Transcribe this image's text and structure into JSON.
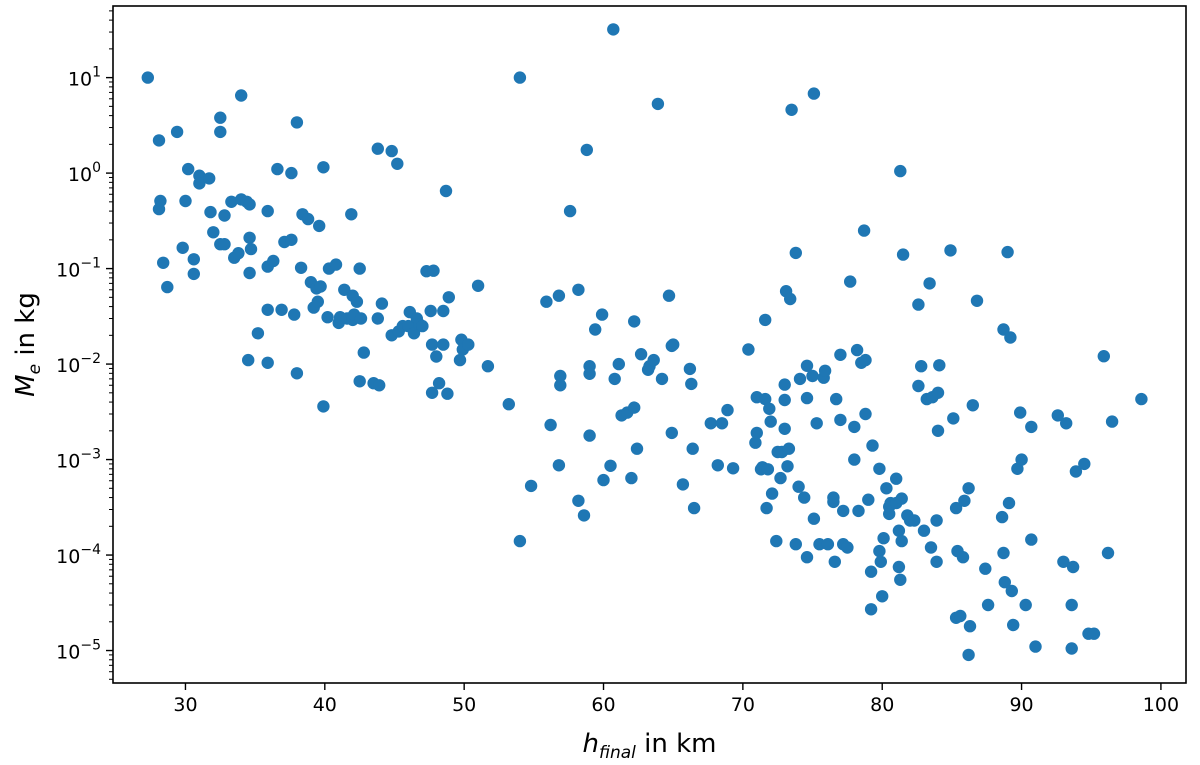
{
  "chart_data": {
    "type": "scatter",
    "xlabel": {
      "base": "h",
      "subscript": "final",
      "suffix": " in km"
    },
    "ylabel": {
      "base": "M",
      "subscript": "e",
      "suffix": " in kg"
    },
    "xlim": [
      24.8,
      101.8
    ],
    "ylim_log10": [
      -5.34,
      1.75
    ],
    "yscale": "log",
    "xticks": [
      30,
      40,
      50,
      60,
      70,
      80,
      90,
      100
    ],
    "yticks": [
      {
        "exp": -5,
        "label": "10",
        "sup": "−5"
      },
      {
        "exp": -4,
        "label": "10",
        "sup": "−4"
      },
      {
        "exp": -3,
        "label": "10",
        "sup": "−3"
      },
      {
        "exp": -2,
        "label": "10",
        "sup": "−2"
      },
      {
        "exp": -1,
        "label": "10",
        "sup": "−1"
      },
      {
        "exp": 0,
        "label": "10",
        "sup": "0"
      },
      {
        "exp": 1,
        "label": "10",
        "sup": "1"
      }
    ],
    "marker_color": "#1f77b4",
    "grid": false,
    "points": [
      [
        27.3,
        10.0
      ],
      [
        28.1,
        2.2
      ],
      [
        28.1,
        0.42
      ],
      [
        28.2,
        0.51
      ],
      [
        28.4,
        0.115
      ],
      [
        28.7,
        0.064
      ],
      [
        29.4,
        2.7
      ],
      [
        29.8,
        0.165
      ],
      [
        30.0,
        0.51
      ],
      [
        30.2,
        1.1
      ],
      [
        30.6,
        0.125
      ],
      [
        30.6,
        0.088
      ],
      [
        31.0,
        0.94
      ],
      [
        31.0,
        0.78
      ],
      [
        31.7,
        0.88
      ],
      [
        31.8,
        0.39
      ],
      [
        32.0,
        0.24
      ],
      [
        32.5,
        3.8
      ],
      [
        32.5,
        2.7
      ],
      [
        32.5,
        0.18
      ],
      [
        32.8,
        0.36
      ],
      [
        32.8,
        0.18
      ],
      [
        33.3,
        0.5
      ],
      [
        33.5,
        0.13
      ],
      [
        33.8,
        0.145
      ],
      [
        34.0,
        6.5
      ],
      [
        34.0,
        0.53
      ],
      [
        34.4,
        0.5
      ],
      [
        34.5,
        0.011
      ],
      [
        34.6,
        0.47
      ],
      [
        34.6,
        0.21
      ],
      [
        34.6,
        0.09
      ],
      [
        34.7,
        0.16
      ],
      [
        35.2,
        0.021
      ],
      [
        35.9,
        0.4
      ],
      [
        35.9,
        0.105
      ],
      [
        35.9,
        0.037
      ],
      [
        35.9,
        0.0103
      ],
      [
        36.3,
        0.12
      ],
      [
        36.6,
        1.1
      ],
      [
        36.9,
        0.037
      ],
      [
        37.1,
        0.19
      ],
      [
        37.6,
        0.2
      ],
      [
        37.6,
        1.0
      ],
      [
        37.8,
        0.033
      ],
      [
        38.0,
        3.4
      ],
      [
        38.0,
        0.008
      ],
      [
        38.3,
        0.102
      ],
      [
        38.4,
        0.37
      ],
      [
        38.8,
        0.33
      ],
      [
        39.0,
        0.072
      ],
      [
        39.2,
        0.039
      ],
      [
        39.4,
        0.062
      ],
      [
        39.5,
        0.045
      ],
      [
        39.6,
        0.28
      ],
      [
        39.7,
        0.065
      ],
      [
        39.9,
        1.15
      ],
      [
        39.9,
        0.0036
      ],
      [
        40.2,
        0.031
      ],
      [
        40.3,
        0.1
      ],
      [
        40.8,
        0.11
      ],
      [
        41.0,
        0.027
      ],
      [
        41.1,
        0.031
      ],
      [
        41.4,
        0.06
      ],
      [
        41.6,
        0.03
      ],
      [
        41.9,
        0.37
      ],
      [
        42.0,
        0.052
      ],
      [
        42.0,
        0.029
      ],
      [
        42.1,
        0.033
      ],
      [
        42.3,
        0.045
      ],
      [
        42.5,
        0.0066
      ],
      [
        42.5,
        0.1
      ],
      [
        42.6,
        0.03
      ],
      [
        42.8,
        0.0132
      ],
      [
        43.5,
        0.0063
      ],
      [
        43.8,
        1.8
      ],
      [
        43.8,
        0.03
      ],
      [
        43.9,
        0.006
      ],
      [
        44.1,
        0.043
      ],
      [
        44.8,
        0.02
      ],
      [
        44.8,
        1.7
      ],
      [
        45.2,
        1.25
      ],
      [
        45.3,
        0.022
      ],
      [
        45.6,
        0.025
      ],
      [
        46.0,
        0.025
      ],
      [
        46.1,
        0.035
      ],
      [
        46.4,
        0.021
      ],
      [
        46.6,
        0.03
      ],
      [
        46.8,
        0.026
      ],
      [
        47.0,
        0.025
      ],
      [
        47.3,
        0.094
      ],
      [
        47.6,
        0.036
      ],
      [
        47.7,
        0.016
      ],
      [
        47.7,
        0.005
      ],
      [
        47.8,
        0.095
      ],
      [
        48.0,
        0.012
      ],
      [
        48.2,
        0.0063
      ],
      [
        48.5,
        0.036
      ],
      [
        48.5,
        0.016
      ],
      [
        48.7,
        0.65
      ],
      [
        48.8,
        0.0049
      ],
      [
        48.9,
        0.05
      ],
      [
        49.7,
        0.011
      ],
      [
        49.8,
        0.018
      ],
      [
        49.9,
        0.0142
      ],
      [
        50.3,
        0.016
      ],
      [
        51.0,
        0.066
      ],
      [
        51.7,
        0.0095
      ],
      [
        53.2,
        0.0038
      ],
      [
        54.0,
        10.0
      ],
      [
        54.0,
        0.00014
      ],
      [
        54.8,
        0.00053
      ],
      [
        55.9,
        0.045
      ],
      [
        56.2,
        0.0023
      ],
      [
        56.8,
        0.052
      ],
      [
        56.8,
        0.00087
      ],
      [
        56.9,
        0.0075
      ],
      [
        56.9,
        0.006
      ],
      [
        57.6,
        0.4
      ],
      [
        58.2,
        0.06
      ],
      [
        58.2,
        0.00037
      ],
      [
        58.6,
        0.00026
      ],
      [
        58.8,
        1.75
      ],
      [
        59.0,
        0.0095
      ],
      [
        59.0,
        0.0079
      ],
      [
        59.0,
        0.00178
      ],
      [
        59.4,
        0.023
      ],
      [
        59.9,
        0.033
      ],
      [
        60.0,
        0.00061
      ],
      [
        60.5,
        0.00086
      ],
      [
        60.7,
        32.0
      ],
      [
        60.8,
        0.007
      ],
      [
        61.1,
        0.01
      ],
      [
        61.3,
        0.0029
      ],
      [
        61.7,
        0.0031
      ],
      [
        62.0,
        0.00064
      ],
      [
        62.2,
        0.0035
      ],
      [
        62.2,
        0.028
      ],
      [
        62.4,
        0.0013
      ],
      [
        62.7,
        0.0127
      ],
      [
        63.2,
        0.0087
      ],
      [
        63.3,
        0.0095
      ],
      [
        63.6,
        0.011
      ],
      [
        63.9,
        5.3
      ],
      [
        64.2,
        0.007
      ],
      [
        64.7,
        0.052
      ],
      [
        64.9,
        0.0155
      ],
      [
        64.9,
        0.0019
      ],
      [
        65.0,
        0.016
      ],
      [
        65.7,
        0.00055
      ],
      [
        66.2,
        0.0089
      ],
      [
        66.3,
        0.0062
      ],
      [
        66.4,
        0.0013
      ],
      [
        66.5,
        0.00031
      ],
      [
        67.7,
        0.0024
      ],
      [
        68.2,
        0.00087
      ],
      [
        68.5,
        0.0024
      ],
      [
        68.9,
        0.0033
      ],
      [
        69.3,
        0.00081
      ],
      [
        70.4,
        0.0142
      ],
      [
        70.9,
        0.0015
      ],
      [
        71.0,
        0.0045
      ],
      [
        71.0,
        0.0019
      ],
      [
        71.3,
        0.00079
      ],
      [
        71.4,
        0.00083
      ],
      [
        71.6,
        0.029
      ],
      [
        71.6,
        0.0043
      ],
      [
        71.7,
        0.00031
      ],
      [
        71.8,
        0.00079
      ],
      [
        71.9,
        0.0034
      ],
      [
        72.0,
        0.0025
      ],
      [
        72.1,
        0.00044
      ],
      [
        72.4,
        0.00014
      ],
      [
        72.5,
        0.0012
      ],
      [
        72.7,
        0.00064
      ],
      [
        72.8,
        0.0012
      ],
      [
        73.0,
        0.0061
      ],
      [
        73.0,
        0.0042
      ],
      [
        73.0,
        0.0021
      ],
      [
        73.1,
        0.058
      ],
      [
        73.2,
        0.00085
      ],
      [
        73.3,
        0.0013
      ],
      [
        73.4,
        0.048
      ],
      [
        73.5,
        4.6
      ],
      [
        73.8,
        0.146
      ],
      [
        73.8,
        0.00013
      ],
      [
        74.0,
        0.00052
      ],
      [
        74.1,
        0.007
      ],
      [
        74.4,
        0.0004
      ],
      [
        74.6,
        0.0096
      ],
      [
        74.6,
        0.0044
      ],
      [
        74.6,
        9.5e-05
      ],
      [
        75.0,
        0.0075
      ],
      [
        75.1,
        6.8
      ],
      [
        75.1,
        0.00024
      ],
      [
        75.3,
        0.0024
      ],
      [
        75.5,
        0.00013
      ],
      [
        75.8,
        0.0072
      ],
      [
        75.9,
        0.0085
      ],
      [
        76.1,
        0.00013
      ],
      [
        76.5,
        0.00036
      ],
      [
        76.5,
        0.0004
      ],
      [
        76.6,
        8.5e-05
      ],
      [
        76.7,
        0.0043
      ],
      [
        77.0,
        0.0125
      ],
      [
        77.0,
        0.0026
      ],
      [
        77.2,
        0.00029
      ],
      [
        77.2,
        0.00013
      ],
      [
        77.5,
        0.00012
      ],
      [
        77.7,
        0.073
      ],
      [
        78.0,
        0.001
      ],
      [
        78.0,
        0.0022
      ],
      [
        78.2,
        0.014
      ],
      [
        78.3,
        0.00029
      ],
      [
        78.5,
        0.0103
      ],
      [
        78.7,
        0.25
      ],
      [
        78.8,
        0.011
      ],
      [
        78.8,
        0.003
      ],
      [
        79.0,
        0.00038
      ],
      [
        79.2,
        2.7e-05
      ],
      [
        79.2,
        6.7e-05
      ],
      [
        79.3,
        0.0014
      ],
      [
        79.8,
        0.0008
      ],
      [
        79.8,
        0.00011
      ],
      [
        79.9,
        8.5e-05
      ],
      [
        80.0,
        3.7e-05
      ],
      [
        80.1,
        0.00015
      ],
      [
        80.3,
        0.0005
      ],
      [
        80.5,
        0.00032
      ],
      [
        80.5,
        0.00027
      ],
      [
        80.6,
        0.00035
      ],
      [
        81.0,
        0.00063
      ],
      [
        81.0,
        0.00035
      ],
      [
        81.2,
        0.00018
      ],
      [
        81.2,
        7.5e-05
      ],
      [
        81.3,
        1.05
      ],
      [
        81.3,
        5.5e-05
      ],
      [
        81.4,
        0.00014
      ],
      [
        81.4,
        0.00039
      ],
      [
        81.5,
        0.14
      ],
      [
        81.8,
        0.00026
      ],
      [
        82.0,
        0.00023
      ],
      [
        82.3,
        0.00023
      ],
      [
        82.6,
        0.042
      ],
      [
        82.6,
        0.0059
      ],
      [
        82.8,
        0.0095
      ],
      [
        83.0,
        0.00018
      ],
      [
        83.2,
        0.0043
      ],
      [
        83.4,
        0.07
      ],
      [
        83.5,
        0.00012
      ],
      [
        83.6,
        0.0045
      ],
      [
        83.9,
        0.00023
      ],
      [
        83.9,
        8.5e-05
      ],
      [
        84.0,
        0.002
      ],
      [
        84.0,
        0.005
      ],
      [
        84.1,
        0.0097
      ],
      [
        84.9,
        0.155
      ],
      [
        85.1,
        0.0027
      ],
      [
        85.3,
        2.2e-05
      ],
      [
        85.3,
        0.00031
      ],
      [
        85.4,
        0.00011
      ],
      [
        85.6,
        2.3e-05
      ],
      [
        85.9,
        0.00037
      ],
      [
        85.8,
        9.5e-05
      ],
      [
        86.2,
        0.0005
      ],
      [
        86.2,
        9e-06
      ],
      [
        86.3,
        1.8e-05
      ],
      [
        86.5,
        0.0037
      ],
      [
        86.8,
        0.046
      ],
      [
        87.4,
        7.2e-05
      ],
      [
        87.6,
        3e-05
      ],
      [
        88.6,
        0.00025
      ],
      [
        88.7,
        0.000105
      ],
      [
        88.7,
        0.023
      ],
      [
        88.8,
        5.2e-05
      ],
      [
        89.0,
        0.149
      ],
      [
        89.1,
        0.00035
      ],
      [
        89.2,
        0.019
      ],
      [
        89.3,
        4.2e-05
      ],
      [
        89.4,
        1.85e-05
      ],
      [
        89.7,
        0.0008
      ],
      [
        89.9,
        0.0031
      ],
      [
        90.0,
        0.001
      ],
      [
        90.3,
        3e-05
      ],
      [
        90.7,
        0.0022
      ],
      [
        90.7,
        0.000145
      ],
      [
        91.0,
        1.1e-05
      ],
      [
        92.6,
        0.0029
      ],
      [
        93.0,
        8.5e-05
      ],
      [
        93.2,
        0.0024
      ],
      [
        93.6,
        1.05e-05
      ],
      [
        93.6,
        3e-05
      ],
      [
        93.7,
        7.5e-05
      ],
      [
        93.9,
        0.00075
      ],
      [
        94.5,
        0.0009
      ],
      [
        94.8,
        1.5e-05
      ],
      [
        95.2,
        1.5e-05
      ],
      [
        95.9,
        0.0121
      ],
      [
        96.2,
        0.000105
      ],
      [
        96.5,
        0.0025
      ],
      [
        98.6,
        0.0043
      ]
    ]
  }
}
